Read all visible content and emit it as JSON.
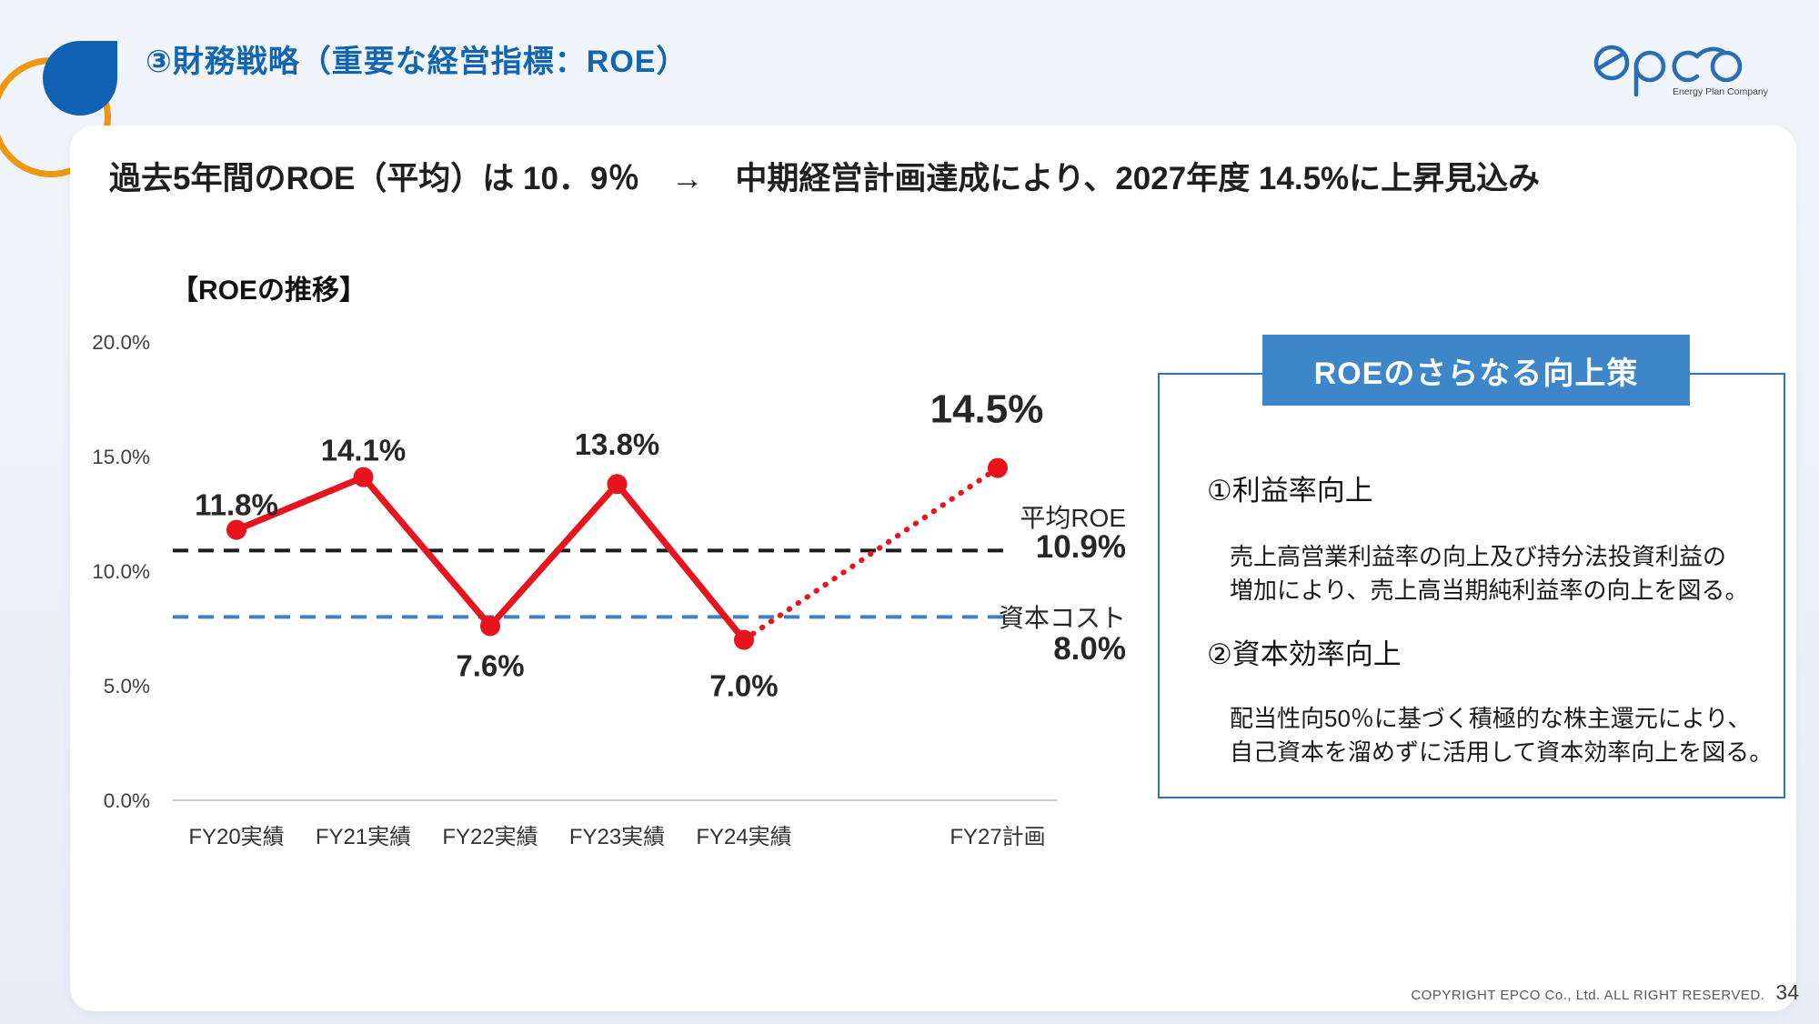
{
  "slide": {
    "title": "③財務戦略（重要な経営指標：ROE）",
    "headline": "過去5年間のROE（平均）は 10．9％　→　中期経営計画達成により、2027年度 14.5%に上昇見込み"
  },
  "logo": {
    "name": "epco",
    "tagline": "Energy Plan Company",
    "color": "#2a6db6"
  },
  "chart_data": {
    "type": "line",
    "title": "【ROEの推移】",
    "categories": [
      "FY20実績",
      "FY21実績",
      "FY22実績",
      "FY23実績",
      "FY24実績",
      "FY27計画"
    ],
    "values": [
      11.8,
      14.1,
      7.6,
      13.8,
      7.0,
      14.5
    ],
    "point_labels": [
      "11.8%",
      "14.1%",
      "7.6%",
      "13.8%",
      "7.0%",
      "14.5%"
    ],
    "solid_until_index": 4,
    "plan_index": 5,
    "ylim": [
      0,
      20
    ],
    "ytick_step": 5,
    "yticks": [
      "0.0%",
      "5.0%",
      "10.0%",
      "15.0%",
      "20.0%"
    ],
    "series_color": "#e8141d",
    "grid": "baseline-only",
    "legend": "none",
    "ref_lines": [
      {
        "label": "平均ROE",
        "value": 10.9,
        "value_label": "10.9%",
        "color": "#1a1a1a"
      },
      {
        "label": "資本コスト",
        "value": 8.0,
        "value_label": "8.0%",
        "color": "#4080c0"
      }
    ]
  },
  "panel": {
    "title": "ROEのさらなる向上策",
    "items": [
      {
        "heading": "①利益率向上",
        "body": "売上高営業利益率の向上及び持分法投資利益の\n増加により、売上高当期純利益率の向上を図る。"
      },
      {
        "heading": "②資本効率向上",
        "body": "配当性向50％に基づく積極的な株主還元により、\n自己資本を溜めずに活用して資本効率向上を図る。"
      }
    ]
  },
  "footer": {
    "copyright": "COPYRIGHT EPCO Co., Ltd. ALL RIGHT RESERVED.",
    "page": "34"
  }
}
